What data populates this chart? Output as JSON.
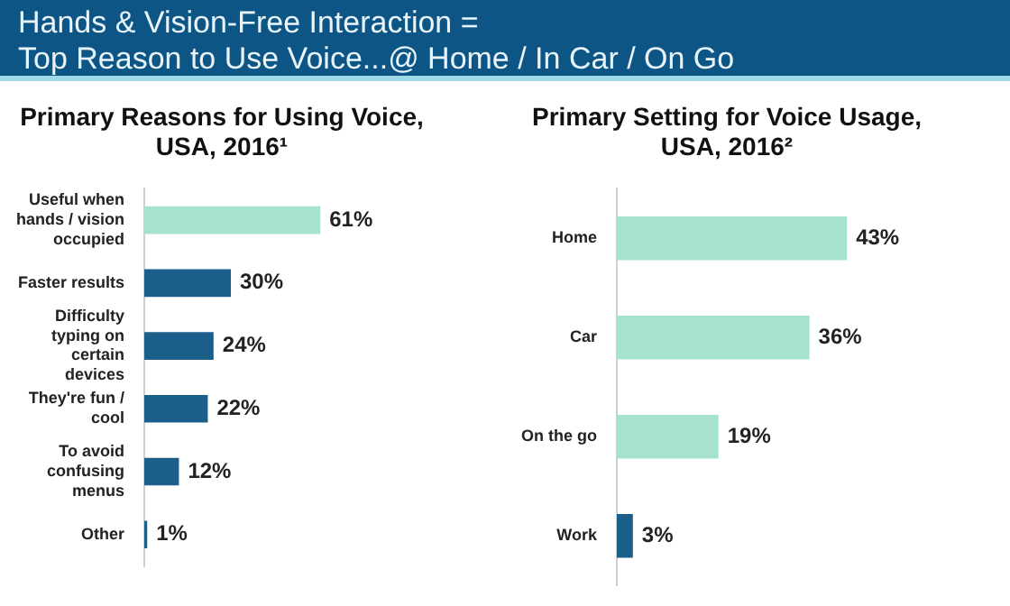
{
  "chart_data": [
    {
      "type": "other",
      "title": "Hands & Vision-Free Interaction =\nTop Reason to Use Voice...@ Home / In Car / On Go"
    },
    {
      "type": "bar",
      "orientation": "horizontal",
      "title": "Primary Reasons for Using Voice, USA, 2016¹",
      "categories": [
        "Useful when hands / vision occupied",
        "Faster results",
        "Difficulty typing on certain devices",
        "They're fun / cool",
        "To avoid confusing menus",
        "Other"
      ],
      "values": [
        61,
        30,
        24,
        22,
        12,
        1
      ],
      "colors": [
        "#a6e3cc",
        "#1b5e8a",
        "#1b5e8a",
        "#1b5e8a",
        "#1b5e8a",
        "#1b5e8a"
      ],
      "value_labels": [
        "61%",
        "30%",
        "24%",
        "22%",
        "12%",
        "1%"
      ]
    },
    {
      "type": "bar",
      "orientation": "horizontal",
      "title": "Primary Setting for Voice Usage, USA, 2016²",
      "categories": [
        "Home",
        "Car",
        "On the go",
        "Work"
      ],
      "values": [
        43,
        36,
        19,
        3
      ],
      "colors": [
        "#a6e3cc",
        "#a6e3cc",
        "#a6e3cc",
        "#1b5e8a"
      ],
      "value_labels": [
        "43%",
        "36%",
        "19%",
        "3%"
      ]
    }
  ]
}
